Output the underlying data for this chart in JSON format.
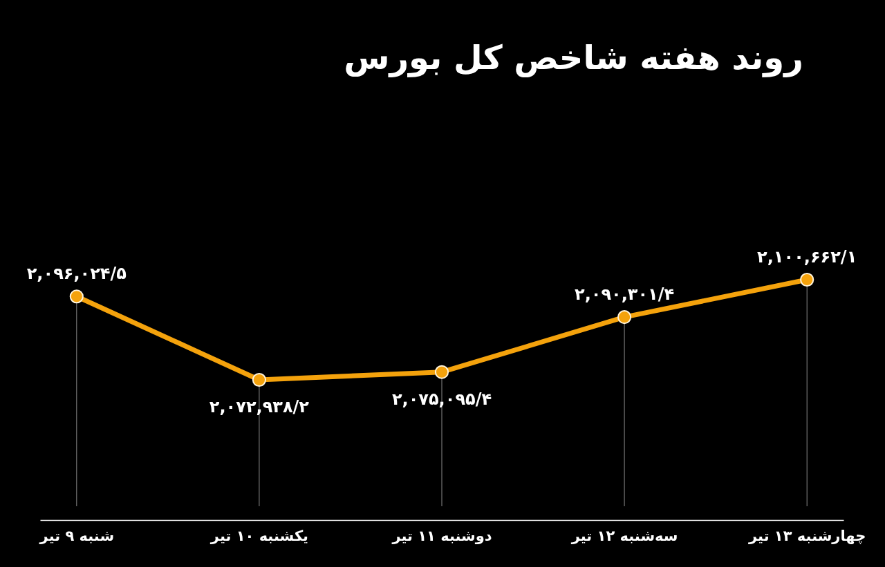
{
  "chart_data": {
    "type": "line",
    "title": "روند هفته شاخص کل بورس",
    "categories": [
      "شنبه ۹ تیر",
      "یکشنبه ۱۰ تیر",
      "دوشنبه ۱۱ تیر",
      "سه‌شنبه ۱۲ تیر",
      "چهارشنبه ۱۳ تیر"
    ],
    "values": [
      2096024.5,
      2072938.2,
      2075095.4,
      2090301.4,
      2100662.1
    ],
    "value_labels": [
      "۲,۰۹۶,۰۲۴/۵",
      "۲,۰۷۲,۹۳۸/۲",
      "۲,۰۷۵,۰۹۵/۴",
      "۲,۰۹۰,۳۰۱/۴",
      "۲,۱۰۰,۶۶۲/۱"
    ],
    "color": "#f4a20c",
    "marker": "circle",
    "line_style": "solid",
    "grid": "x",
    "tick_labels": "x"
  }
}
